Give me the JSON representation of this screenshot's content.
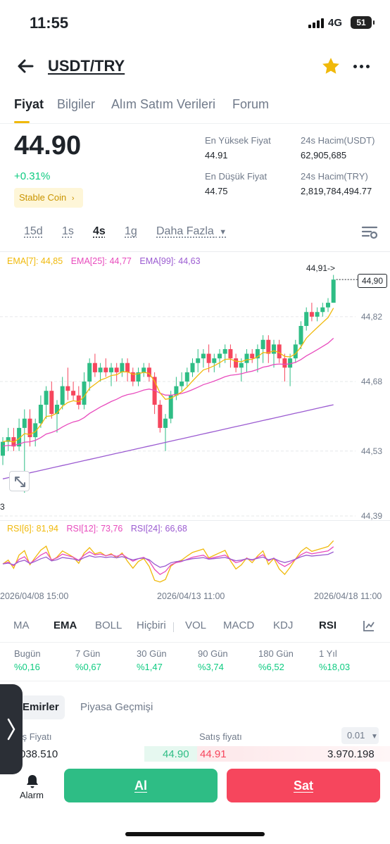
{
  "status": {
    "time": "11:55",
    "network": "4G",
    "battery": "51"
  },
  "header": {
    "title": "USDT/TRY"
  },
  "tabs": [
    "Fiyat",
    "Bilgiler",
    "Alım Satım Verileri",
    "Forum"
  ],
  "ticker": {
    "price": "44.90",
    "change": "+0.31%",
    "tag": "Stable Coin",
    "stats": [
      {
        "label": "En Yüksek Fiyat",
        "value": "44.91"
      },
      {
        "label": "24s Hacim(USDT)",
        "value": "62,905,685"
      },
      {
        "label": "En Düşük Fiyat",
        "value": "44.75"
      },
      {
        "label": "24s Hacim(TRY)",
        "value": "2,819,784,494.77"
      }
    ]
  },
  "intervals": [
    "15d",
    "1s",
    "4s",
    "1g",
    "Daha Fazla"
  ],
  "chart": {
    "ema_legend": [
      "EMA[7]: 44,85",
      "EMA[25]: 44,77",
      "EMA[99]: 44,63"
    ],
    "high_mark": "44,91->",
    "current_tag": "44,90",
    "y_ticks": [
      "44,82",
      "44,68",
      "44,53",
      "44,39"
    ],
    "low_cut_label": "3",
    "rsi_legend": [
      "RSI[6]: 81,94",
      "RSI[12]: 73,76",
      "RSI[24]: 66,68"
    ],
    "dates": [
      "2026/04/08 15:00",
      "2026/04/13 11:00",
      "2026/04/18 11:00"
    ]
  },
  "chart_data": {
    "type": "candlestick",
    "ylim": [
      44.39,
      44.92
    ],
    "candles": [
      [
        44.52,
        44.56,
        44.5,
        44.55
      ],
      [
        44.55,
        44.58,
        44.53,
        44.56
      ],
      [
        44.56,
        44.58,
        44.53,
        44.54
      ],
      [
        44.54,
        44.6,
        44.53,
        44.58
      ],
      [
        44.58,
        44.62,
        44.44,
        44.6
      ],
      [
        44.6,
        44.62,
        44.54,
        44.56
      ],
      [
        44.56,
        44.6,
        44.54,
        44.59
      ],
      [
        44.59,
        44.65,
        44.58,
        44.63
      ],
      [
        44.63,
        44.67,
        44.6,
        44.66
      ],
      [
        44.66,
        44.68,
        44.6,
        44.61
      ],
      [
        44.61,
        44.64,
        44.57,
        44.63
      ],
      [
        44.63,
        44.69,
        44.62,
        44.67
      ],
      [
        44.67,
        44.71,
        44.64,
        44.66
      ],
      [
        44.66,
        44.68,
        44.64,
        44.65
      ],
      [
        44.65,
        44.67,
        44.62,
        44.63
      ],
      [
        44.63,
        44.7,
        44.62,
        44.68
      ],
      [
        44.68,
        44.73,
        44.66,
        44.72
      ],
      [
        44.72,
        44.74,
        44.69,
        44.7
      ],
      [
        44.7,
        44.72,
        44.68,
        44.71
      ],
      [
        44.71,
        44.73,
        44.69,
        44.7
      ],
      [
        44.7,
        44.72,
        44.67,
        44.71
      ],
      [
        44.71,
        44.72,
        44.68,
        44.7
      ],
      [
        44.7,
        44.73,
        44.69,
        44.72
      ],
      [
        44.72,
        44.73,
        44.68,
        44.7
      ],
      [
        44.7,
        44.71,
        44.67,
        44.68
      ],
      [
        44.68,
        44.71,
        44.67,
        44.7
      ],
      [
        44.7,
        44.72,
        44.69,
        44.71
      ],
      [
        44.71,
        44.72,
        44.68,
        44.69
      ],
      [
        44.69,
        44.7,
        44.61,
        44.63
      ],
      [
        44.63,
        44.64,
        44.57,
        44.58
      ],
      [
        44.58,
        44.61,
        44.53,
        44.6
      ],
      [
        44.6,
        44.66,
        44.59,
        44.65
      ],
      [
        44.65,
        44.69,
        44.64,
        44.67
      ],
      [
        44.67,
        44.7,
        44.66,
        44.68
      ],
      [
        44.68,
        44.71,
        44.67,
        44.7
      ],
      [
        44.7,
        44.73,
        44.69,
        44.72
      ],
      [
        44.72,
        44.75,
        44.7,
        44.73
      ],
      [
        44.73,
        44.75,
        44.71,
        44.74
      ],
      [
        44.74,
        44.76,
        44.7,
        44.72
      ],
      [
        44.72,
        44.74,
        44.7,
        44.73
      ],
      [
        44.73,
        44.75,
        44.71,
        44.74
      ],
      [
        44.74,
        44.76,
        44.72,
        44.75
      ],
      [
        44.75,
        44.76,
        44.71,
        44.73
      ],
      [
        44.73,
        44.74,
        44.7,
        44.71
      ],
      [
        44.71,
        44.73,
        44.68,
        44.72
      ],
      [
        44.72,
        44.75,
        44.7,
        44.74
      ],
      [
        44.74,
        44.75,
        44.72,
        44.73
      ],
      [
        44.73,
        44.76,
        44.7,
        44.75
      ],
      [
        44.75,
        44.78,
        44.72,
        44.77
      ],
      [
        44.77,
        44.78,
        44.72,
        44.74
      ],
      [
        44.74,
        44.77,
        44.71,
        44.76
      ],
      [
        44.76,
        44.77,
        44.72,
        44.73
      ],
      [
        44.73,
        44.74,
        44.68,
        44.71
      ],
      [
        44.71,
        44.74,
        44.67,
        44.73
      ],
      [
        44.73,
        44.77,
        44.72,
        44.76
      ],
      [
        44.76,
        44.81,
        44.75,
        44.8
      ],
      [
        44.8,
        44.84,
        44.79,
        44.83
      ],
      [
        44.83,
        44.85,
        44.81,
        44.82
      ],
      [
        44.82,
        44.84,
        44.81,
        44.83
      ],
      [
        44.83,
        44.85,
        44.82,
        44.84
      ],
      [
        44.84,
        44.86,
        44.83,
        44.85
      ],
      [
        44.85,
        44.91,
        44.85,
        44.9
      ]
    ],
    "ema7_end": 44.85,
    "ema25_end": 44.77,
    "ema99_end": 44.63,
    "rsi6_end": 81.94,
    "rsi12_end": 73.76,
    "rsi24_end": 66.68
  },
  "indicators": [
    "MA",
    "EMA",
    "BOLL",
    "Hiçbiri",
    "VOL",
    "MACD",
    "KDJ",
    "RSI"
  ],
  "performance": [
    {
      "label": "Bugün",
      "value": "%0,16"
    },
    {
      "label": "7 Gün",
      "value": "%0,67"
    },
    {
      "label": "30 Gün",
      "value": "%1,47"
    },
    {
      "label": "90 Gün",
      "value": "%3,74"
    },
    {
      "label": "180 Gün",
      "value": "%6,52"
    },
    {
      "label": "1 Yıl",
      "value": "%18,03"
    }
  ],
  "order_tabs": [
    "Emirler",
    "Piyasa Geçmişi"
  ],
  "orderbook": {
    "buy_head": "ış Fiyatı",
    "sell_head": "Satış fiyatı",
    "precision": "0.01",
    "bid_qty": "038.510",
    "bid_price": "44.90",
    "ask_price": "44.91",
    "ask_qty": "3.970.198"
  },
  "bottom": {
    "alarm": "Alarm",
    "buy": "Al",
    "sell": "Sat"
  },
  "colors": {
    "up": "#2ebd85",
    "down": "#f6465d",
    "accent": "#f0b90b"
  }
}
